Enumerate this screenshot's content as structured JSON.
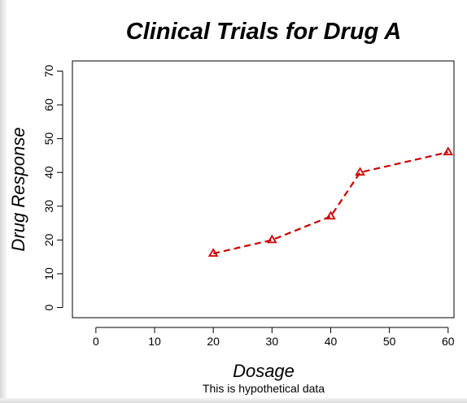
{
  "chart_data": {
    "type": "line",
    "title": "Clinical Trials for Drug A",
    "xlabel": "Dosage",
    "ylabel": "Drug Response",
    "subtitle": "This is hypothetical data",
    "x": [
      20,
      30,
      40,
      45,
      60
    ],
    "series": [
      {
        "values": [
          16,
          20,
          27,
          40,
          46
        ]
      }
    ],
    "xlim": [
      -4,
      61
    ],
    "ylim": [
      -3,
      73
    ],
    "xticks": [
      0,
      10,
      20,
      30,
      40,
      50,
      60
    ],
    "yticks": [
      0,
      10,
      20,
      30,
      40,
      50,
      60,
      70
    ],
    "line_style": "dashed",
    "marker": "triangle-open",
    "color": "#cc0000",
    "grid": false,
    "legend": "none"
  }
}
